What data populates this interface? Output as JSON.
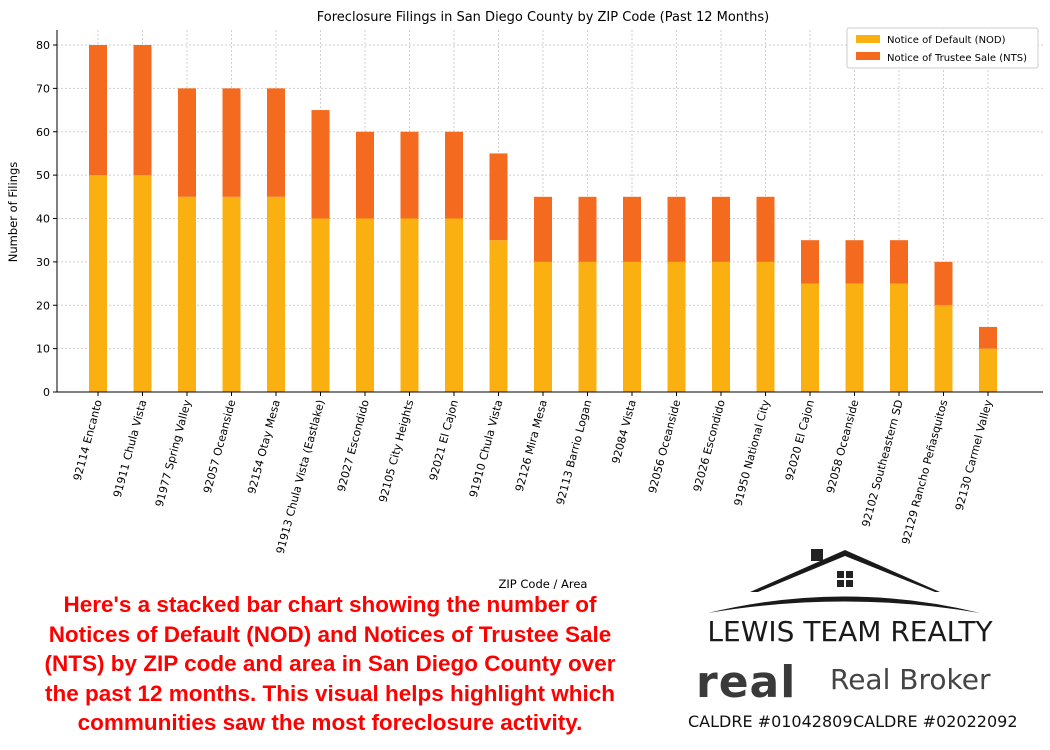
{
  "chart_data": {
    "type": "bar",
    "stacked": true,
    "title": "Foreclosure Filings in San Diego County by ZIP Code (Past 12 Months)",
    "xlabel": "ZIP Code / Area",
    "ylabel": "Number of Filings",
    "ylim": [
      0,
      82
    ],
    "yticks": [
      0,
      10,
      20,
      30,
      40,
      50,
      60,
      70,
      80
    ],
    "grid": true,
    "legend_position": "top-right",
    "categories": [
      "92114 Encanto",
      "91911 Chula Vista",
      "91977 Spring Valley",
      "92057 Oceanside",
      "92154 Otay Mesa",
      "91913 Chula Vista (Eastlake)",
      "92027 Escondido",
      "92105 City Heights",
      "92021 El Cajon",
      "91910 Chula Vista",
      "92126 Mira Mesa",
      "92113 Barrio Logan",
      "92084 Vista",
      "92056 Oceanside",
      "92026 Escondido",
      "91950 National City",
      "92020 El Cajon",
      "92058 Oceanside",
      "92102 Southeastern SD",
      "92129 Rancho Peñasquitos",
      "92130 Carmel Valley"
    ],
    "series": [
      {
        "name": "Notice of Default (NOD)",
        "color": "#fbb012",
        "values": [
          50,
          50,
          45,
          45,
          45,
          40,
          40,
          40,
          40,
          35,
          30,
          30,
          30,
          30,
          30,
          30,
          25,
          25,
          25,
          20,
          10
        ]
      },
      {
        "name": "Notice of Trustee Sale (NTS)",
        "color": "#f46a1f",
        "values": [
          30,
          30,
          25,
          25,
          25,
          25,
          20,
          20,
          20,
          20,
          15,
          15,
          15,
          15,
          15,
          15,
          10,
          10,
          10,
          10,
          5
        ]
      }
    ]
  },
  "caption": {
    "lines": [
      "Here's a stacked bar chart showing the number of",
      "Notices of Default (NOD) and Notices of Trustee Sale",
      "(NTS) by ZIP code and area in San Diego County over",
      "the past 12 months. This visual helps highlight which",
      "communities saw the most foreclosure activity."
    ]
  },
  "brand": {
    "name": "LEWIS TEAM REALTY",
    "logo_text": "real",
    "broker": "Real Broker",
    "licenses": [
      "CALDRE #01042809",
      "CALDRE #02022092"
    ]
  }
}
